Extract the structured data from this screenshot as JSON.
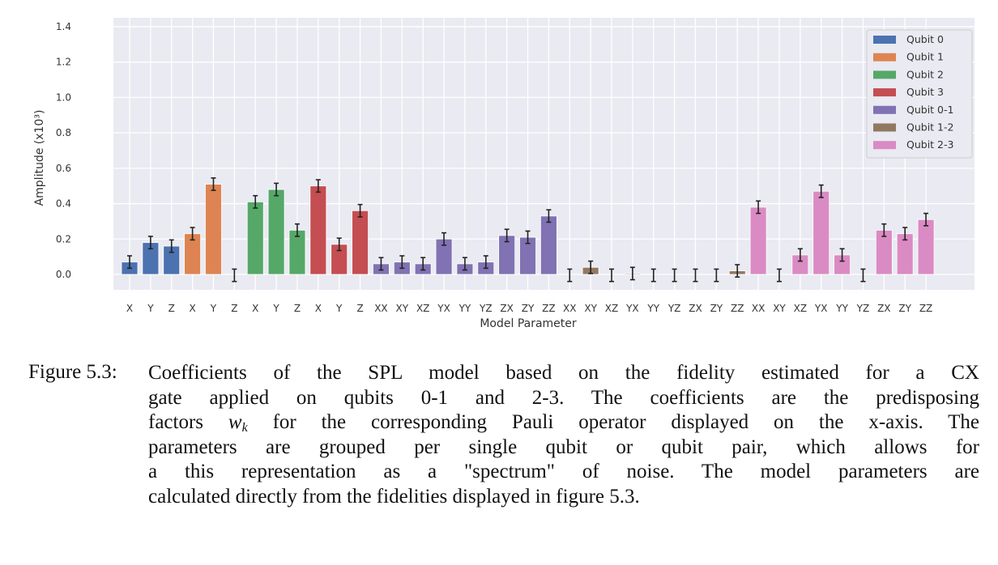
{
  "chart_data": {
    "type": "bar",
    "title": "",
    "xlabel": "Model Parameter",
    "ylabel": "Amplitude (x10³)",
    "ylim": [
      -0.09,
      1.4
    ],
    "yticks": [
      "0.0",
      "0.2",
      "0.4",
      "0.6",
      "0.8",
      "1.0",
      "1.2",
      "1.4"
    ],
    "grid": true,
    "legend_position": "top-right",
    "background": "#EAEAF2",
    "series": [
      {
        "name": "Qubit 0",
        "color": "#4C72B0",
        "categories": [
          "X",
          "Y",
          "Z"
        ],
        "values": [
          0.07,
          0.18,
          0.16
        ],
        "errors": [
          0.035,
          0.035,
          0.035
        ]
      },
      {
        "name": "Qubit 1",
        "color": "#DD8452",
        "categories": [
          "X",
          "Y",
          "Z"
        ],
        "values": [
          0.23,
          0.51,
          0.0
        ],
        "errors": [
          0.035,
          0.035,
          0.035
        ]
      },
      {
        "name": "Qubit 2",
        "color": "#55A868",
        "categories": [
          "X",
          "Y",
          "Z"
        ],
        "values": [
          0.41,
          0.48,
          0.25
        ],
        "errors": [
          0.035,
          0.035,
          0.035
        ]
      },
      {
        "name": "Qubit 3",
        "color": "#C44E52",
        "categories": [
          "X",
          "Y",
          "Z"
        ],
        "values": [
          0.5,
          0.17,
          0.36
        ],
        "errors": [
          0.035,
          0.035,
          0.035
        ]
      },
      {
        "name": "Qubit 0-1",
        "color": "#8172B3",
        "categories": [
          "XX",
          "XY",
          "XZ",
          "YX",
          "YY",
          "YZ",
          "ZX",
          "ZY",
          "ZZ"
        ],
        "values": [
          0.06,
          0.07,
          0.06,
          0.2,
          0.06,
          0.07,
          0.22,
          0.21,
          0.33
        ],
        "errors": [
          0.035,
          0.035,
          0.035,
          0.035,
          0.035,
          0.035,
          0.035,
          0.035,
          0.035
        ]
      },
      {
        "name": "Qubit 1-2",
        "color": "#937860",
        "categories": [
          "XX",
          "XY",
          "XZ",
          "YX",
          "YY",
          "YZ",
          "ZX",
          "ZY",
          "ZZ"
        ],
        "values": [
          0.0,
          0.04,
          0.0,
          0.005,
          0.0,
          0.0,
          0.0,
          0.0,
          0.02
        ],
        "errors": [
          0.035,
          0.035,
          0.035,
          0.035,
          0.035,
          0.035,
          0.035,
          0.035,
          0.035
        ]
      },
      {
        "name": "Qubit 2-3",
        "color": "#DA8BC3",
        "categories": [
          "XX",
          "XY",
          "XZ",
          "YX",
          "YY",
          "YZ",
          "ZX",
          "ZY",
          "ZZ"
        ],
        "values": [
          0.38,
          0.0,
          0.11,
          0.47,
          0.11,
          0.0,
          0.25,
          0.23,
          0.31
        ],
        "errors": [
          0.035,
          0.035,
          0.035,
          0.035,
          0.035,
          0.035,
          0.035,
          0.035,
          0.035
        ]
      }
    ]
  },
  "caption": {
    "label": "Figure 5.3:",
    "lines": [
      "Coefficients of the SPL model based on the fidelity estimated for a CX",
      "gate applied on qubits 0-1 and 2-3. The coefficients are the predisposing"
    ],
    "line3": {
      "prefix": "factors ",
      "var": "w",
      "sub": "k",
      "suffix": " for the corresponding Pauli operator displayed on the x-axis. The"
    },
    "rest": [
      "parameters are grouped per single qubit or qubit pair, which allows for",
      "a this representation as a \"spectrum\" of noise. The model parameters are",
      "calculated directly from the fidelities displayed in figure 5.3."
    ]
  }
}
